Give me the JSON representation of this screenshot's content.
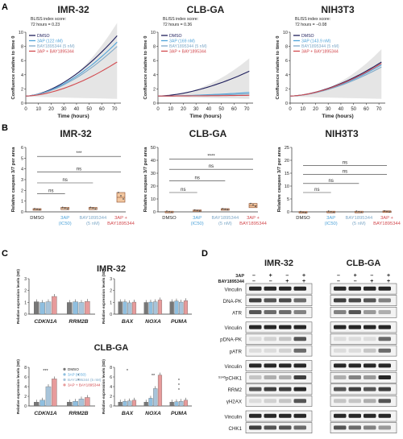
{
  "figure": {
    "panel_labels": [
      "A",
      "B",
      "C",
      "D"
    ],
    "colors": {
      "dmso": "#1f1f5c",
      "ap3": "#4fa3d9",
      "bay": "#7fa9c8",
      "combo": "#d24a4f",
      "band": "#222222",
      "grid_shade": "#cfcfcf"
    },
    "panel_a": {
      "xlabel": "Time (hours)",
      "ylabel": "Confluence relative to time 0",
      "xticks": [
        "0",
        "10",
        "20",
        "30",
        "40",
        "50",
        "60",
        "70"
      ],
      "charts": [
        {
          "title": "IMR-32",
          "bliss_line1": "BLISS index score:",
          "bliss_line2": "72 hours = 0.23",
          "yticks": [
            "0",
            "2",
            "4",
            "6",
            "8",
            "10"
          ],
          "legend": [
            "DMSO",
            "3AP (122 nM)",
            "BAY1895344 (5 nM)",
            "3AP + BAY1895344"
          ]
        },
        {
          "title": "CLB-GA",
          "bliss_line1": "BLISS index score:",
          "bliss_line2": "72 hours = 0.36",
          "yticks": [
            "0",
            "2",
            "4",
            "6",
            "8",
            "10"
          ],
          "legend": [
            "DMSO",
            "3AP (169 nM)",
            "BAY1895344 (5 nM)",
            "3AP + BAY1895344"
          ]
        },
        {
          "title": "NIH3T3",
          "bliss_line1": "BLISS index score:",
          "bliss_line2": "72 hours = −0.08",
          "yticks": [
            "0",
            "2",
            "4",
            "6",
            "8",
            "10"
          ],
          "legend": [
            "DMSO",
            "3AP (143.9 nM)",
            "BAY1895344 (5 nM)",
            "3AP + BAY1895344"
          ]
        }
      ]
    },
    "panel_b": {
      "ylabel": "Relative caspase 3/7 per area",
      "categories": [
        "DMSO",
        "3AP\n(IC50)",
        "BAY1895344\n(5 nM)",
        "3AP +\nBAY1895344"
      ],
      "charts": [
        {
          "title": "IMR-32",
          "yticks": [
            "0",
            "1",
            "2",
            "3",
            "4",
            "5",
            "6"
          ],
          "sig": [
            "ns",
            "ns",
            "ns",
            "***"
          ]
        },
        {
          "title": "CLB-GA",
          "yticks": [
            "0",
            "10",
            "20",
            "30",
            "40",
            "50"
          ],
          "sig": [
            "ns",
            "ns",
            "ns",
            "****"
          ]
        },
        {
          "title": "NIH3T3",
          "yticks": [
            "0",
            "5",
            "10",
            "15",
            "20",
            "25"
          ],
          "sig": [
            "ns",
            "ns",
            "ns",
            "ns"
          ]
        }
      ]
    },
    "panel_c": {
      "ylabel": "Relative expression levels (SD)",
      "top_title": "IMR-32",
      "bottom_title": "CLB-GA",
      "genes_left": [
        "CDKN1A",
        "RRM2B"
      ],
      "genes_right": [
        "BAX",
        "NOXA",
        "PUMA"
      ],
      "legend": [
        "DMSO",
        "3AP (IC50)",
        "BAY1895344 (5 nM)",
        "3AP + BAY1895344"
      ],
      "sig_bottom_left": [
        "***",
        "*",
        "*"
      ],
      "sig_bottom_right": [
        "*",
        "**",
        "*",
        "*",
        "*"
      ]
    },
    "panel_d": {
      "titles": [
        "IMR-32",
        "CLB-GA"
      ],
      "treat_labels": [
        "3AP",
        "BAY1895344"
      ],
      "treat_signs": [
        [
          "–",
          "+",
          "–",
          "+"
        ],
        [
          "–",
          "–",
          "+",
          "+"
        ]
      ],
      "blots": [
        "Vinculin",
        "DNA-PK",
        "ATR",
        "Vinculin",
        "pDNA-PK",
        "pATR",
        "Vinculin",
        "S345pCHK1",
        "RRM2",
        "γH2AX",
        "Vinculin",
        "CHK1"
      ]
    }
  }
}
